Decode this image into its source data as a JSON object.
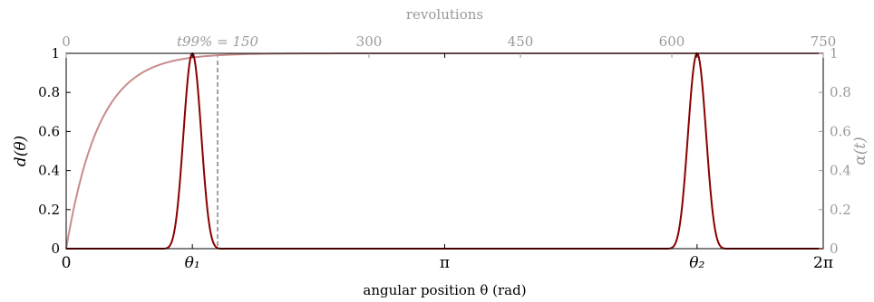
{
  "chart_data": {
    "type": "line",
    "xlabel": "angular position θ (rad)",
    "ylabel_left": "d(θ)",
    "ylabel_right": "α(t)",
    "xlabel_top": "revolutions",
    "bottom_ticks": [
      {
        "value": 0,
        "label": "0"
      },
      {
        "value": 1.0472,
        "label": "θ₁"
      },
      {
        "value": 3.14159,
        "label": "π"
      },
      {
        "value": 5.236,
        "label": "θ₂"
      },
      {
        "value": 6.28319,
        "label": "2π"
      }
    ],
    "top_ticks": [
      {
        "value": 0,
        "label": "0"
      },
      {
        "value": 150,
        "label": "t99% = 150"
      },
      {
        "value": 300,
        "label": "300"
      },
      {
        "value": 450,
        "label": "450"
      },
      {
        "value": 600,
        "label": "600"
      },
      {
        "value": 750,
        "label": "750"
      }
    ],
    "left_ticks": [
      {
        "value": 0,
        "label": "0"
      },
      {
        "value": 0.2,
        "label": "0.2"
      },
      {
        "value": 0.4,
        "label": "0.4"
      },
      {
        "value": 0.6,
        "label": "0.6"
      },
      {
        "value": 0.8,
        "label": "0.8"
      },
      {
        "value": 1,
        "label": "1"
      }
    ],
    "right_ticks": [
      {
        "value": 0,
        "label": "0"
      },
      {
        "value": 0.2,
        "label": "0.2"
      },
      {
        "value": 0.4,
        "label": "0.4"
      },
      {
        "value": 0.6,
        "label": "0.6"
      },
      {
        "value": 0.8,
        "label": "0.8"
      },
      {
        "value": 1,
        "label": "1"
      }
    ],
    "xlim": [
      0,
      6.28319
    ],
    "xlim_top": [
      0,
      750
    ],
    "ylim": [
      0,
      1
    ],
    "ylim_right": [
      0,
      1
    ],
    "grid": false,
    "reference_line": {
      "x_top": 150,
      "style": "dashed"
    },
    "series": [
      {
        "axis": "bottom-left",
        "color": "#8b0000",
        "peaks": [
          {
            "center": 1.0472,
            "support": [
              0.77,
              1.33
            ],
            "height": 1
          },
          {
            "center": 5.236,
            "support": [
              4.95,
              5.52
            ],
            "height": 1
          }
        ],
        "points": [
          [
            0,
            0
          ],
          [
            0.77,
            0
          ],
          [
            0.84,
            0.03
          ],
          [
            0.9,
            0.15
          ],
          [
            0.95,
            0.4
          ],
          [
            1.0,
            0.8
          ],
          [
            1.0472,
            1.0
          ],
          [
            1.1,
            0.8
          ],
          [
            1.15,
            0.4
          ],
          [
            1.2,
            0.15
          ],
          [
            1.26,
            0.03
          ],
          [
            1.33,
            0
          ],
          [
            4.95,
            0
          ],
          [
            5.02,
            0.03
          ],
          [
            5.09,
            0.15
          ],
          [
            5.14,
            0.4
          ],
          [
            5.19,
            0.8
          ],
          [
            5.236,
            1.0
          ],
          [
            5.28,
            0.8
          ],
          [
            5.33,
            0.4
          ],
          [
            5.38,
            0.15
          ],
          [
            5.45,
            0.03
          ],
          [
            5.52,
            0
          ],
          [
            6.28319,
            0
          ]
        ]
      },
      {
        "axis": "top-right",
        "color": "#c98b8b",
        "function": "1 - exp(-t/32.6)",
        "points": [
          [
            0,
            0
          ],
          [
            10,
            0.26
          ],
          [
            20,
            0.46
          ],
          [
            30,
            0.6
          ],
          [
            40,
            0.71
          ],
          [
            50,
            0.78
          ],
          [
            60,
            0.84
          ],
          [
            80,
            0.91
          ],
          [
            100,
            0.95
          ],
          [
            125,
            0.98
          ],
          [
            150,
            0.99
          ],
          [
            200,
            0.998
          ],
          [
            300,
            1.0
          ],
          [
            750,
            1.0
          ]
        ]
      }
    ]
  }
}
